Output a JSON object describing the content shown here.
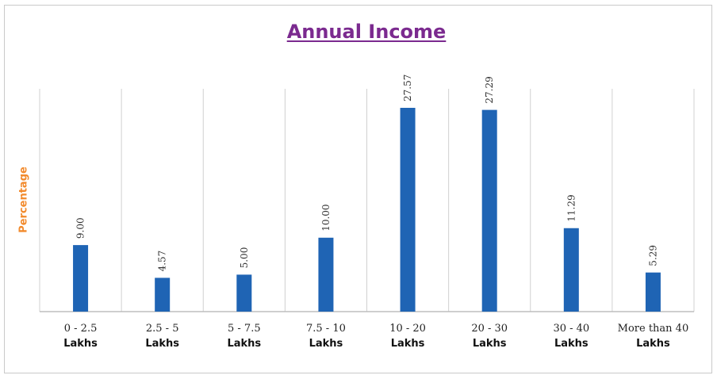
{
  "chart_data": {
    "type": "bar",
    "title": "Annual Income",
    "ylabel": "Percentage",
    "xlabel": "",
    "categories": [
      {
        "line1": "0 - 2.5",
        "line2": "Lakhs"
      },
      {
        "line1": "2.5 - 5",
        "line2": "Lakhs"
      },
      {
        "line1": "5 - 7.5",
        "line2": "Lakhs"
      },
      {
        "line1": "7.5 - 10",
        "line2": "Lakhs"
      },
      {
        "line1": "10 - 20",
        "line2": "Lakhs"
      },
      {
        "line1": "20 - 30",
        "line2": "Lakhs"
      },
      {
        "line1": "30 - 40",
        "line2": "Lakhs"
      },
      {
        "line1": "More than 40",
        "line2": "Lakhs"
      }
    ],
    "values": [
      9.0,
      4.57,
      5.0,
      10.0,
      27.57,
      27.29,
      11.29,
      5.29
    ],
    "value_labels": [
      "9.00",
      "4.57",
      "5.00",
      "10.00",
      "27.57",
      "27.29",
      "11.29",
      "5.29"
    ],
    "ylim": [
      0,
      30
    ],
    "grid": "vertical separators",
    "legend": "none",
    "colors": {
      "bar": "#1f64b4",
      "title": "#7b2a8f",
      "ylabel": "#f28a2c",
      "grid": "#d0d0d0",
      "axis": "#bdbdbd"
    }
  }
}
